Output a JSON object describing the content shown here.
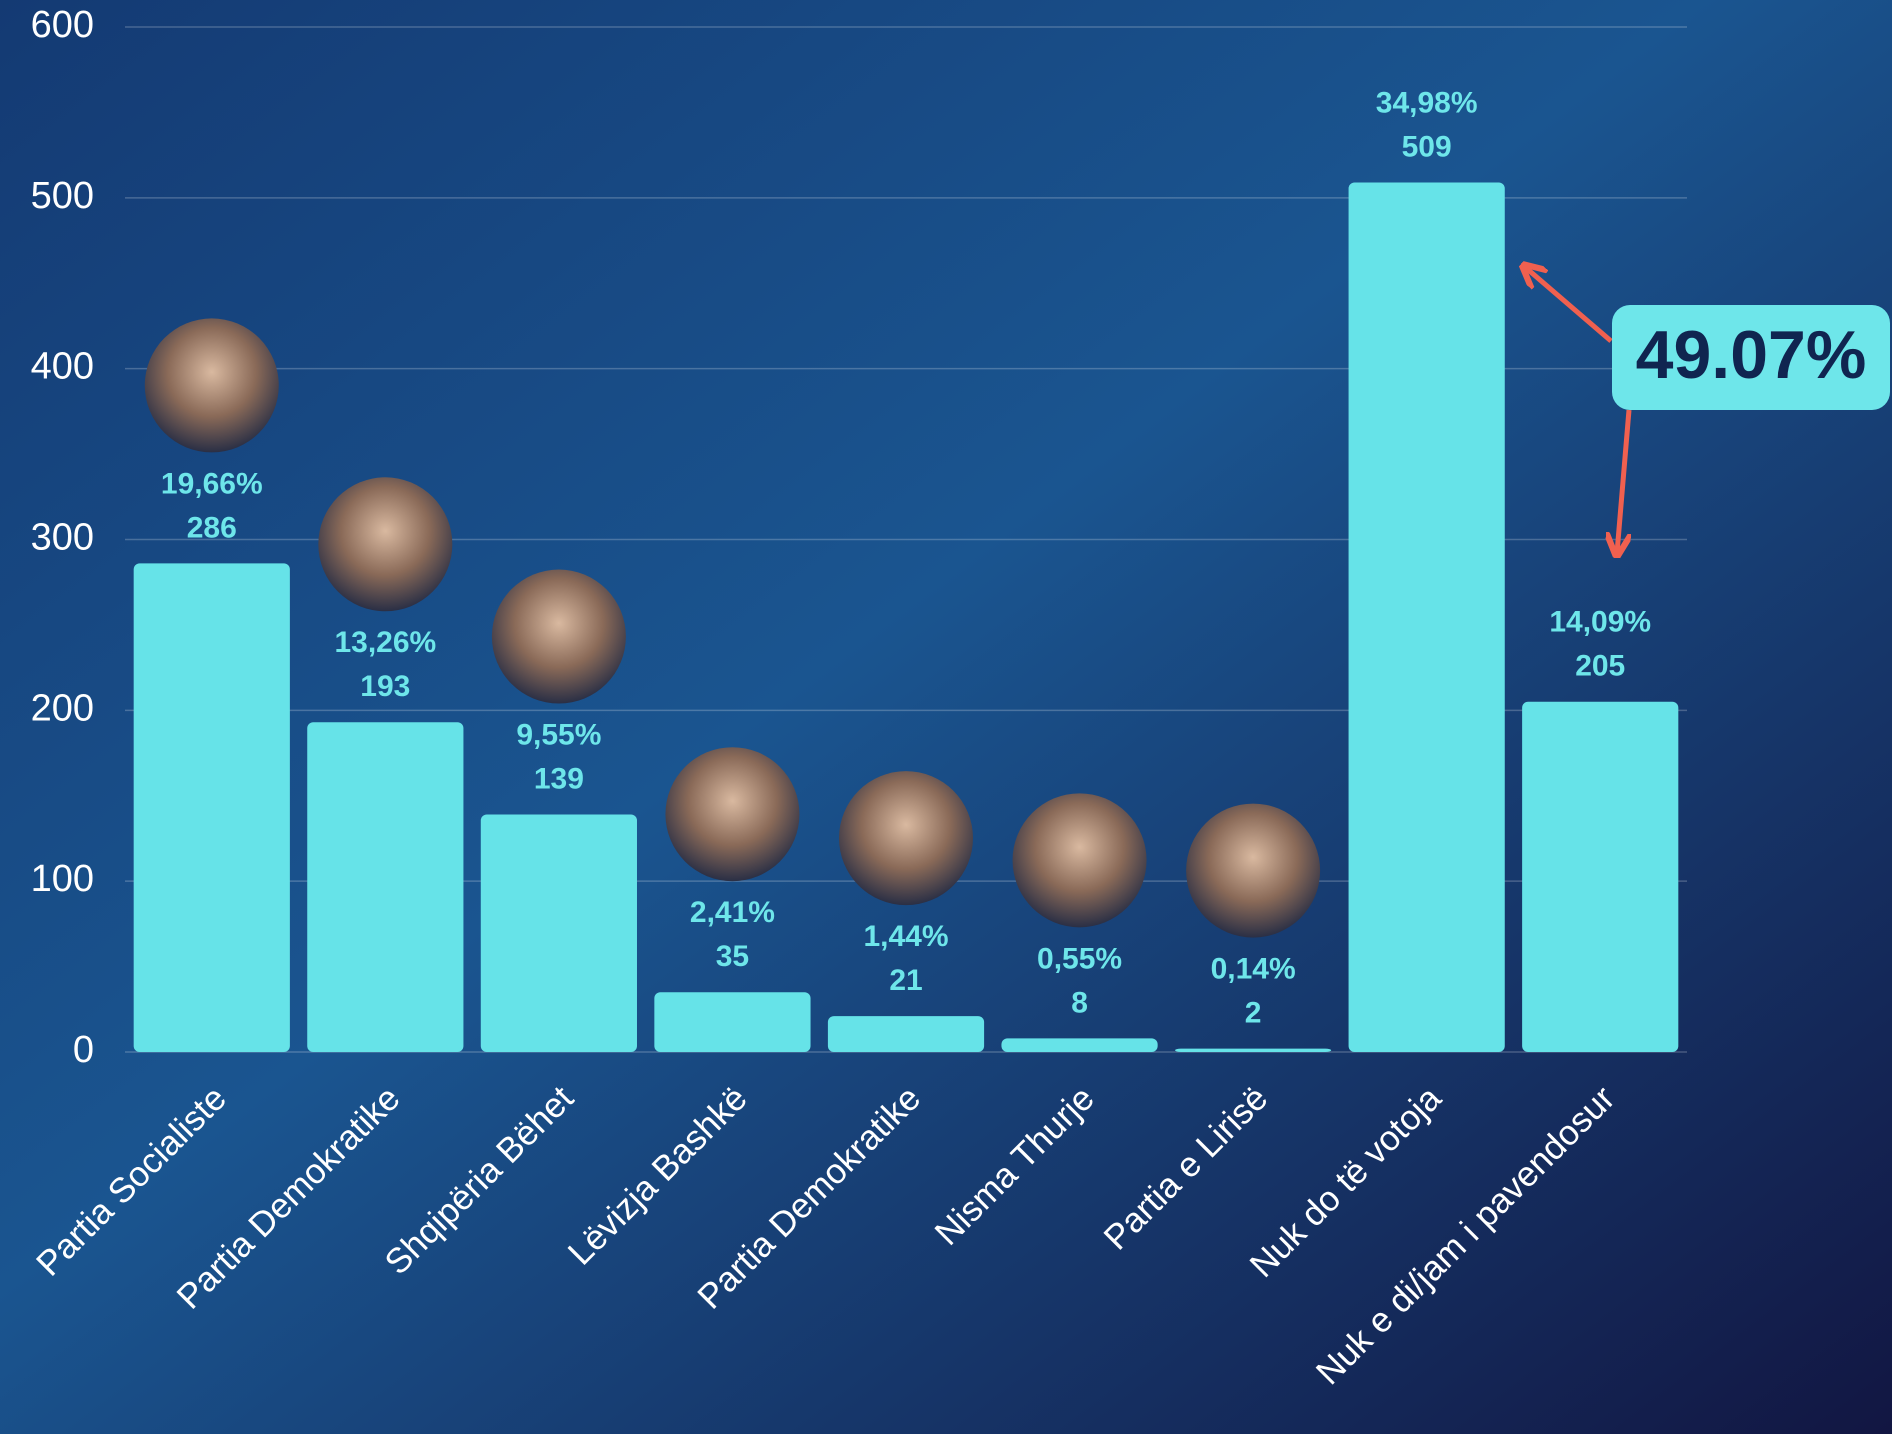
{
  "chart_data": {
    "type": "bar",
    "categories": [
      "Partia Socialiste",
      "Partia Demokratike",
      "Shqipëria Bëhet",
      "Lëvizja Bashkë",
      "Partia Demokratike",
      "Nisma Thurje",
      "Partia e Lirisë",
      "Nuk do të votoja",
      "Nuk e di/jam i pavendosur"
    ],
    "values": [
      286,
      193,
      139,
      35,
      21,
      8,
      2,
      509,
      205
    ],
    "percent_labels": [
      "19,66%",
      "13,26%",
      "9,55%",
      "2,41%",
      "1,44%",
      "0,55%",
      "0,14%",
      "34,98%",
      "14,09%"
    ],
    "color": "#66e3e8",
    "ylim": [
      0,
      600
    ],
    "yticks": [
      0,
      100,
      200,
      300,
      400,
      500,
      600
    ],
    "grid": true,
    "annotation": "49.07%"
  }
}
